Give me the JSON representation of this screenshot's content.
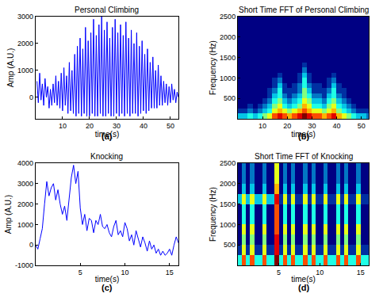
{
  "chart_data": [
    {
      "type": "line",
      "title": "Personal Climbing",
      "x_label": "time(s)",
      "y_label": "Amp (A.U.)",
      "color": "#0000ff",
      "x": [
        0.5,
        1,
        1.5,
        2,
        2.5,
        3,
        3.5,
        4,
        4.5,
        5,
        5.5,
        6,
        6.5,
        7,
        7.5,
        8,
        8.5,
        9,
        9.5,
        10,
        10.5,
        11,
        11.5,
        12,
        12.5,
        13,
        13.5,
        14,
        14.5,
        15,
        15.5,
        16,
        16.5,
        17,
        17.5,
        18,
        18.5,
        19,
        19.5,
        20,
        20.5,
        21,
        21.5,
        22,
        22.5,
        23,
        23.5,
        24,
        24.5,
        25,
        25.5,
        26,
        26.5,
        27,
        27.5,
        28,
        28.5,
        29,
        29.5,
        30,
        30.5,
        31,
        31.5,
        32,
        32.5,
        33,
        33.5,
        34,
        34.5,
        35,
        35.5,
        36,
        36.5,
        37,
        37.5,
        38,
        38.5,
        39,
        39.5,
        40,
        40.5,
        41,
        41.5,
        42,
        42.5,
        43,
        43.5,
        44,
        44.5,
        45,
        45.5,
        46,
        46.5,
        47,
        47.5,
        48,
        48.5,
        49,
        49.5,
        50,
        50.5,
        51,
        51.5,
        52,
        52.5,
        53
      ],
      "values": [
        600,
        -200,
        900,
        -100,
        500,
        -300,
        700,
        0,
        400,
        -400,
        300,
        -300,
        500,
        -200,
        800,
        -300,
        600,
        -400,
        900,
        -500,
        1100,
        -300,
        800,
        -600,
        1300,
        -500,
        1000,
        -600,
        1600,
        -700,
        1900,
        -600,
        2200,
        -700,
        1800,
        -600,
        2600,
        -700,
        2100,
        -700,
        2400,
        -600,
        2900,
        -700,
        2300,
        -700,
        2700,
        -600,
        3000,
        -700,
        2500,
        -700,
        2800,
        -600,
        2200,
        -700,
        2600,
        -700,
        2900,
        -600,
        2400,
        -700,
        2700,
        -600,
        2300,
        -700,
        2800,
        -600,
        2200,
        -700,
        2500,
        -600,
        2000,
        -600,
        2400,
        -700,
        1900,
        -600,
        2100,
        -500,
        1600,
        -600,
        1800,
        -500,
        1300,
        -400,
        1500,
        -400,
        1000,
        -400,
        1200,
        -300,
        800,
        -300,
        600,
        -200,
        500,
        -300,
        400,
        -200,
        500,
        -100,
        300,
        -200,
        200,
        0
      ],
      "xlim": [
        0,
        53
      ],
      "ylim": [
        -800,
        3000
      ],
      "xticks": [
        10,
        20,
        30,
        40,
        50
      ],
      "yticks": [
        0,
        1000,
        2000,
        3000
      ],
      "annotations": [
        "(a)"
      ]
    },
    {
      "type": "heatmap",
      "title": "Short Time FFT of Personal Climbing",
      "x_label": "time(s)",
      "y_label": "Frequency (Hz)",
      "color": "Jet",
      "x": [
        1,
        3,
        5,
        7,
        9,
        11,
        13,
        15,
        17,
        19,
        21,
        23,
        25,
        27,
        29,
        31,
        33,
        35,
        37,
        39,
        41,
        43,
        45,
        47,
        49,
        51,
        53
      ],
      "y": [
        62.5,
        187.5,
        312.5,
        437.5,
        562.5,
        687.5,
        812.5,
        937.5,
        1062.5,
        1187.5,
        1312.5,
        1437.5,
        1562.5,
        1687.5,
        1812.5,
        1937.5,
        2062.5,
        2187.5,
        2312.5,
        2437.5
      ],
      "cells": [
        [
          3,
          3,
          4,
          3,
          4,
          5,
          6,
          8,
          9,
          8,
          7,
          8,
          9,
          10,
          9,
          8,
          8,
          7,
          8,
          9,
          7,
          6,
          5,
          4,
          3,
          3,
          2
        ],
        [
          1,
          1,
          2,
          1,
          2,
          3,
          4,
          6,
          7,
          6,
          5,
          6,
          7,
          8,
          7,
          6,
          6,
          5,
          6,
          7,
          5,
          4,
          3,
          2,
          1,
          1,
          1
        ],
        [
          0,
          0,
          1,
          0,
          1,
          2,
          3,
          5,
          6,
          4,
          3,
          4,
          5,
          7,
          6,
          4,
          4,
          3,
          5,
          6,
          4,
          3,
          2,
          1,
          0,
          0,
          0
        ],
        [
          0,
          0,
          0,
          0,
          0,
          1,
          2,
          4,
          5,
          3,
          2,
          3,
          4,
          6,
          5,
          3,
          3,
          2,
          4,
          5,
          3,
          2,
          1,
          0,
          0,
          0,
          0
        ],
        [
          0,
          0,
          0,
          0,
          0,
          0,
          1,
          3,
          4,
          2,
          1,
          2,
          3,
          5,
          4,
          2,
          2,
          1,
          3,
          4,
          2,
          1,
          0,
          0,
          0,
          0,
          0
        ],
        [
          0,
          0,
          0,
          0,
          0,
          0,
          1,
          2,
          4,
          1,
          1,
          1,
          2,
          5,
          3,
          1,
          1,
          1,
          2,
          4,
          1,
          1,
          0,
          0,
          0,
          0,
          0
        ],
        [
          0,
          0,
          0,
          0,
          0,
          0,
          0,
          1,
          3,
          1,
          0,
          1,
          2,
          4,
          2,
          1,
          1,
          0,
          1,
          3,
          1,
          0,
          0,
          0,
          0,
          0,
          0
        ],
        [
          0,
          0,
          0,
          0,
          0,
          0,
          0,
          1,
          2,
          0,
          0,
          0,
          1,
          4,
          1,
          0,
          0,
          0,
          1,
          2,
          0,
          0,
          0,
          0,
          0,
          0,
          0
        ],
        [
          0,
          0,
          0,
          0,
          0,
          0,
          0,
          0,
          1,
          0,
          0,
          0,
          1,
          3,
          1,
          0,
          0,
          0,
          0,
          1,
          0,
          0,
          0,
          0,
          0,
          0,
          0
        ],
        [
          0,
          0,
          0,
          0,
          0,
          0,
          0,
          0,
          0,
          0,
          0,
          0,
          0,
          2,
          0,
          0,
          0,
          0,
          0,
          0,
          0,
          0,
          0,
          0,
          0,
          0,
          0
        ],
        [
          0,
          0,
          0,
          0,
          0,
          0,
          0,
          0,
          0,
          0,
          0,
          0,
          0,
          1,
          0,
          0,
          0,
          0,
          0,
          0,
          0,
          0,
          0,
          0,
          0,
          0,
          0
        ],
        [
          0,
          0,
          0,
          0,
          0,
          0,
          0,
          0,
          0,
          0,
          0,
          0,
          0,
          0,
          0,
          0,
          0,
          0,
          0,
          0,
          0,
          0,
          0,
          0,
          0,
          0,
          0
        ],
        [
          0,
          0,
          0,
          0,
          0,
          0,
          0,
          0,
          0,
          0,
          0,
          0,
          0,
          0,
          0,
          0,
          0,
          0,
          0,
          0,
          0,
          0,
          0,
          0,
          0,
          0,
          0
        ],
        [
          0,
          0,
          0,
          0,
          0,
          0,
          0,
          0,
          0,
          0,
          0,
          0,
          0,
          0,
          0,
          0,
          0,
          0,
          0,
          0,
          0,
          0,
          0,
          0,
          0,
          0,
          0
        ],
        [
          0,
          0,
          0,
          0,
          0,
          0,
          0,
          0,
          0,
          0,
          0,
          0,
          0,
          0,
          0,
          0,
          0,
          0,
          0,
          0,
          0,
          0,
          0,
          0,
          0,
          0,
          0
        ],
        [
          0,
          0,
          0,
          0,
          0,
          0,
          0,
          0,
          0,
          0,
          0,
          0,
          0,
          0,
          0,
          0,
          0,
          0,
          0,
          0,
          0,
          0,
          0,
          0,
          0,
          0,
          0
        ],
        [
          0,
          0,
          0,
          0,
          0,
          0,
          0,
          0,
          0,
          0,
          0,
          0,
          0,
          0,
          0,
          0,
          0,
          0,
          0,
          0,
          0,
          0,
          0,
          0,
          0,
          0,
          0
        ],
        [
          0,
          0,
          0,
          0,
          0,
          0,
          0,
          0,
          0,
          0,
          0,
          0,
          0,
          0,
          0,
          0,
          0,
          0,
          0,
          0,
          0,
          0,
          0,
          0,
          0,
          0,
          0
        ],
        [
          0,
          0,
          0,
          0,
          0,
          0,
          0,
          0,
          0,
          0,
          0,
          0,
          0,
          0,
          0,
          0,
          0,
          0,
          0,
          0,
          0,
          0,
          0,
          0,
          0,
          0,
          0
        ],
        [
          0,
          0,
          0,
          0,
          0,
          0,
          0,
          0,
          0,
          0,
          0,
          0,
          0,
          0,
          0,
          0,
          0,
          0,
          0,
          0,
          0,
          0,
          0,
          0,
          0,
          0,
          0
        ]
      ],
      "zlim": [
        0,
        10
      ],
      "xlim": [
        0,
        53
      ],
      "ylim": [
        0,
        2500
      ],
      "xticks": [
        10,
        20,
        30,
        40,
        50
      ],
      "yticks": [
        500,
        1000,
        1500,
        2000,
        2500
      ],
      "annotations": [
        "(b)"
      ]
    },
    {
      "type": "line",
      "title": "Knocking",
      "x_label": "time(s)",
      "y_label": "Amp (A.U.)",
      "color": "#0000ff",
      "x": [
        0,
        0.25,
        0.5,
        0.75,
        1,
        1.25,
        1.5,
        1.75,
        2,
        2.25,
        2.5,
        2.75,
        3,
        3.25,
        3.5,
        3.75,
        4,
        4.25,
        4.5,
        4.75,
        5,
        5.25,
        5.5,
        5.75,
        6,
        6.25,
        6.5,
        6.75,
        7,
        7.25,
        7.5,
        7.75,
        8,
        8.25,
        8.5,
        8.75,
        9,
        9.25,
        9.5,
        9.75,
        10,
        10.25,
        10.5,
        10.75,
        11,
        11.25,
        11.5,
        11.75,
        12,
        12.25,
        12.5,
        12.75,
        13,
        13.25,
        13.5,
        13.75,
        14,
        14.25,
        14.5,
        14.75,
        15,
        15.25,
        15.5,
        15.75,
        16
      ],
      "values": [
        0,
        -200,
        300,
        800,
        2000,
        3100,
        2400,
        2800,
        3000,
        2200,
        2700,
        2000,
        1500,
        1900,
        1200,
        2200,
        3300,
        3900,
        3000,
        3600,
        1800,
        1000,
        1500,
        700,
        1300,
        1200,
        600,
        1200,
        1000,
        1500,
        900,
        800,
        1000,
        600,
        400,
        900,
        1200,
        500,
        700,
        400,
        1100,
        800,
        200,
        500,
        0,
        700,
        300,
        -100,
        400,
        100,
        -300,
        200,
        -200,
        0,
        -400,
        -200,
        -500,
        -300,
        -500,
        -400,
        -200,
        -500,
        0,
        400,
        100
      ],
      "xlim": [
        0,
        16
      ],
      "ylim": [
        -1000,
        4000
      ],
      "xticks": [
        5,
        10,
        15
      ],
      "yticks": [
        -1000,
        0,
        1000,
        2000,
        3000,
        4000
      ],
      "annotations": [
        "(c)"
      ]
    },
    {
      "type": "heatmap",
      "title": "Short Time FFT of Knocking",
      "x_label": "time(s)",
      "y_label": "Frequency (Hz)",
      "color": "Jet",
      "x": [
        0.25,
        0.75,
        1.25,
        1.75,
        2.25,
        2.75,
        3.25,
        3.75,
        4.25,
        4.75,
        5.25,
        5.75,
        6.25,
        6.75,
        7.25,
        7.75,
        8.25,
        8.75,
        9.25,
        9.75,
        10.25,
        10.75,
        11.25,
        11.75,
        12.25,
        12.75,
        13.25,
        13.75,
        14.25,
        14.75,
        15.25,
        15.75
      ],
      "y": [
        125,
        375,
        625,
        875,
        1125,
        1375,
        1625,
        1875,
        2125,
        2375
      ],
      "cells": [
        [
          4,
          8,
          4,
          8,
          4,
          4,
          8,
          4,
          4,
          10,
          4,
          8,
          4,
          8,
          4,
          4,
          8,
          4,
          8,
          4,
          4,
          8,
          4,
          4,
          8,
          4,
          8,
          4,
          4,
          8,
          4,
          4
        ],
        [
          1,
          6,
          1,
          6,
          1,
          1,
          6,
          1,
          1,
          9,
          1,
          6,
          1,
          6,
          1,
          1,
          6,
          1,
          6,
          1,
          1,
          6,
          1,
          1,
          6,
          1,
          6,
          1,
          1,
          6,
          1,
          1
        ],
        [
          0,
          5,
          0,
          5,
          0,
          0,
          5,
          0,
          0,
          9,
          0,
          5,
          0,
          5,
          0,
          0,
          5,
          0,
          5,
          0,
          0,
          5,
          0,
          0,
          5,
          0,
          5,
          0,
          0,
          5,
          0,
          0
        ],
        [
          0,
          6,
          0,
          6,
          0,
          0,
          6,
          0,
          0,
          8,
          0,
          6,
          0,
          6,
          0,
          0,
          6,
          0,
          6,
          0,
          0,
          6,
          0,
          0,
          6,
          0,
          6,
          0,
          0,
          6,
          0,
          0
        ],
        [
          0,
          4,
          0,
          4,
          0,
          0,
          4,
          0,
          0,
          8,
          0,
          4,
          0,
          4,
          0,
          0,
          4,
          0,
          4,
          0,
          0,
          4,
          0,
          0,
          4,
          0,
          4,
          0,
          0,
          4,
          0,
          0
        ],
        [
          0,
          4,
          0,
          4,
          0,
          0,
          4,
          0,
          0,
          8,
          0,
          4,
          0,
          4,
          0,
          0,
          4,
          0,
          4,
          0,
          0,
          4,
          0,
          0,
          4,
          0,
          4,
          0,
          0,
          4,
          0,
          0
        ],
        [
          3,
          6,
          3,
          6,
          3,
          3,
          6,
          3,
          3,
          9,
          1,
          6,
          1,
          6,
          1,
          1,
          6,
          1,
          6,
          1,
          1,
          6,
          1,
          1,
          6,
          1,
          6,
          1,
          1,
          6,
          1,
          1
        ],
        [
          0,
          3,
          0,
          3,
          0,
          0,
          3,
          0,
          0,
          7,
          0,
          3,
          0,
          3,
          0,
          0,
          3,
          0,
          3,
          0,
          0,
          3,
          0,
          0,
          3,
          0,
          3,
          0,
          0,
          3,
          0,
          0
        ],
        [
          0,
          2,
          0,
          2,
          0,
          0,
          2,
          0,
          0,
          6,
          0,
          2,
          0,
          2,
          0,
          0,
          2,
          0,
          2,
          0,
          0,
          2,
          0,
          0,
          2,
          0,
          2,
          0,
          0,
          2,
          0,
          0
        ],
        [
          0,
          2,
          0,
          2,
          0,
          0,
          2,
          0,
          0,
          6,
          0,
          2,
          0,
          2,
          0,
          0,
          2,
          0,
          2,
          0,
          0,
          2,
          0,
          0,
          2,
          0,
          2,
          0,
          0,
          2,
          0,
          0
        ]
      ],
      "zlim": [
        0,
        10
      ],
      "xlim": [
        0,
        16
      ],
      "ylim": [
        0,
        2500
      ],
      "xticks": [
        5,
        10,
        15
      ],
      "yticks": [
        500,
        1000,
        1500,
        2000,
        2500
      ],
      "annotations": [
        "(d)"
      ]
    }
  ]
}
